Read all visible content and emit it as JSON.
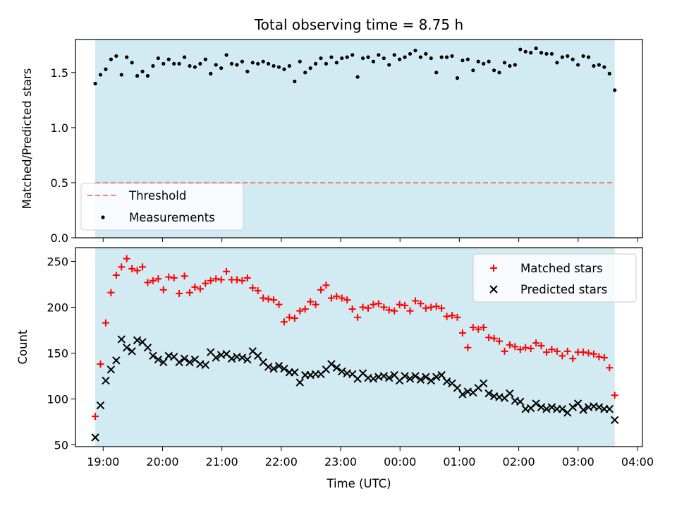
{
  "chart_data": [
    {
      "type": "scatter",
      "title": "Total observing time = 8.75 h",
      "xlabel": "",
      "ylabel": "Matched/Predicted stars",
      "ylim": [
        0.0,
        1.8
      ],
      "yticks": [
        "0.0",
        "0.5",
        "1.0",
        "1.5"
      ],
      "xlim": [
        "2023-01-01T18:32",
        "2023-01-02T04:05"
      ],
      "observation_window": [
        "2023-01-01T18:52",
        "2023-01-02T03:37"
      ],
      "observation_window_color": "#add8e6",
      "threshold": 0.5,
      "threshold_color": "#f08080",
      "legend_placement": "lower-left",
      "legend": [
        "Threshold",
        "Measurements"
      ],
      "series": [
        {
          "name": "Measurements",
          "color": "#000000",
          "marker": "dot",
          "values": [
            1.4,
            1.48,
            1.53,
            1.62,
            1.65,
            1.48,
            1.64,
            1.59,
            1.47,
            1.51,
            1.47,
            1.56,
            1.63,
            1.58,
            1.62,
            1.58,
            1.58,
            1.64,
            1.56,
            1.55,
            1.58,
            1.62,
            1.49,
            1.57,
            1.54,
            1.66,
            1.58,
            1.57,
            1.6,
            1.51,
            1.59,
            1.58,
            1.6,
            1.58,
            1.56,
            1.55,
            1.53,
            1.56,
            1.42,
            1.6,
            1.5,
            1.54,
            1.58,
            1.63,
            1.58,
            1.64,
            1.59,
            1.63,
            1.64,
            1.66,
            1.46,
            1.63,
            1.64,
            1.6,
            1.66,
            1.63,
            1.57,
            1.66,
            1.62,
            1.64,
            1.67,
            1.7,
            1.64,
            1.67,
            1.63,
            1.5,
            1.64,
            1.64,
            1.65,
            1.45,
            1.61,
            1.62,
            1.52,
            1.6,
            1.58,
            1.6,
            1.52,
            1.5,
            1.59,
            1.56,
            1.57,
            1.71,
            1.69,
            1.68,
            1.72,
            1.68,
            1.67,
            1.67,
            1.59,
            1.64,
            1.65,
            1.62,
            1.57,
            1.65,
            1.64,
            1.56,
            1.57,
            1.55,
            1.49,
            1.34
          ]
        }
      ]
    },
    {
      "type": "scatter",
      "title": "",
      "xlabel": "Time (UTC)",
      "ylabel": "Count",
      "ylim": [
        48,
        265
      ],
      "yticks": [
        "50",
        "100",
        "150",
        "200",
        "250"
      ],
      "xlim": [
        "2023-01-01T18:32",
        "2023-01-02T04:05"
      ],
      "xticks": [
        "19:00",
        "20:00",
        "21:00",
        "22:00",
        "23:00",
        "00:00",
        "01:00",
        "02:00",
        "03:00",
        "04:00"
      ],
      "observation_window": [
        "2023-01-01T18:52",
        "2023-01-02T03:37"
      ],
      "legend_placement": "top-right",
      "legend": [
        "Matched stars",
        "Predicted stars"
      ],
      "series": [
        {
          "name": "Matched stars",
          "color": "#ff0000",
          "marker": "plus",
          "values": [
            81,
            138,
            183,
            216,
            235,
            244,
            253,
            242,
            240,
            244,
            227,
            229,
            231,
            219,
            233,
            232,
            215,
            234,
            216,
            222,
            220,
            226,
            229,
            231,
            230,
            239,
            230,
            230,
            229,
            232,
            221,
            218,
            210,
            209,
            208,
            203,
            184,
            189,
            188,
            196,
            198,
            206,
            203,
            219,
            224,
            210,
            212,
            210,
            208,
            198,
            189,
            200,
            199,
            203,
            204,
            200,
            197,
            196,
            203,
            202,
            196,
            207,
            204,
            199,
            200,
            201,
            199,
            190,
            191,
            189,
            172,
            156,
            178,
            176,
            178,
            167,
            166,
            163,
            152,
            159,
            157,
            154,
            156,
            155,
            161,
            158,
            151,
            154,
            152,
            147,
            152,
            144,
            151,
            151,
            150,
            149,
            146,
            145,
            134,
            104
          ]
        },
        {
          "name": "Predicted stars",
          "color": "#000000",
          "marker": "x",
          "values": [
            58,
            93,
            120,
            132,
            142,
            165,
            156,
            152,
            164,
            162,
            156,
            147,
            143,
            140,
            147,
            146,
            140,
            144,
            140,
            143,
            138,
            137,
            151,
            145,
            148,
            149,
            144,
            146,
            145,
            143,
            152,
            147,
            140,
            135,
            133,
            136,
            133,
            129,
            129,
            118,
            126,
            126,
            127,
            127,
            132,
            138,
            134,
            130,
            128,
            127,
            122,
            128,
            123,
            122,
            124,
            125,
            123,
            126,
            120,
            125,
            122,
            125,
            121,
            124,
            120,
            124,
            126,
            119,
            117,
            112,
            105,
            108,
            107,
            112,
            117,
            106,
            103,
            102,
            101,
            106,
            98,
            97,
            89,
            90,
            95,
            91,
            89,
            91,
            89,
            89,
            85,
            91,
            95,
            88,
            91,
            92,
            91,
            89,
            89,
            77
          ]
        }
      ]
    }
  ]
}
